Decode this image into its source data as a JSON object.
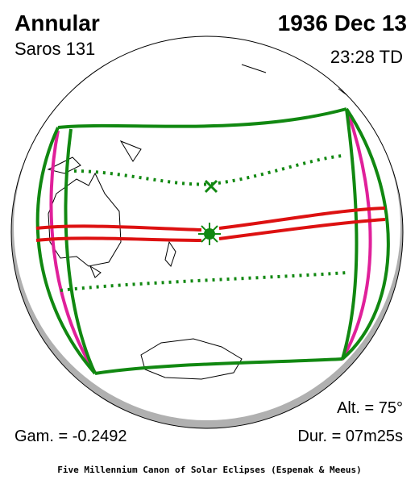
{
  "header": {
    "title": "Annular",
    "saros": "Saros 131",
    "date": "1936 Dec 13",
    "time": "23:28 TD"
  },
  "stats": {
    "altitude": "Alt. = 75°",
    "gamma": "Gam. = -0.2492",
    "duration": "Dur. = 07m25s"
  },
  "footer": "Five Millennium Canon of Solar Eclipses (Espenak & Meeus)"
}
